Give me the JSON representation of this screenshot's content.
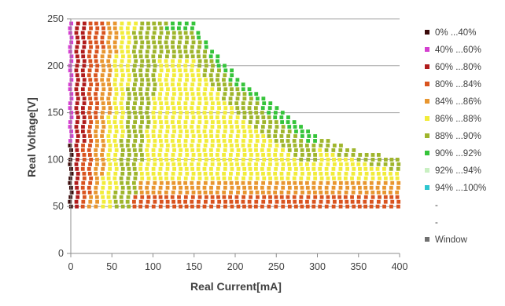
{
  "chart_data": {
    "type": "scatter",
    "xlabel": "Real Current[mA]",
    "ylabel": "Real Voltage[V]",
    "xlim": [
      0,
      400
    ],
    "ylim": [
      0,
      250
    ],
    "xticks": [
      "0",
      "50",
      "100",
      "150",
      "200",
      "250",
      "300",
      "350",
      "400"
    ],
    "yticks": [
      "0",
      "50",
      "100",
      "150",
      "200",
      "250"
    ],
    "grid": "horizontal",
    "legend_position": "right",
    "legend": [
      {
        "label": "0% ...40%",
        "color": "#3a0a0a"
      },
      {
        "label": "40% ...60%",
        "color": "#d43fd0"
      },
      {
        "label": "60% ...80%",
        "color": "#b01c1c"
      },
      {
        "label": "80% ...84%",
        "color": "#d9541f"
      },
      {
        "label": "84% ...86%",
        "color": "#e8962f"
      },
      {
        "label": "86% ...88%",
        "color": "#f2ec3a"
      },
      {
        "label": "88% ...90%",
        "color": "#9fb52c"
      },
      {
        "label": "90% ...92%",
        "color": "#35c43a"
      },
      {
        "label": "92% ...94%",
        "color": "#c9f0c2"
      },
      {
        "label": "94% ...100%",
        "color": "#2ec6cf"
      },
      {
        "label": "-",
        "color": ""
      },
      {
        "label": "-",
        "color": ""
      },
      {
        "label": "Window",
        "color": "#707070"
      }
    ],
    "series": [
      {
        "range": "0% ...40%",
        "color": "#3a0a0a",
        "x_min": 0,
        "x_max": 3,
        "y_min": 50,
        "y_max": 115,
        "top_v_at_zero": 115,
        "slope": 0
      },
      {
        "range": "40% ...60%",
        "color": "#d43fd0",
        "x_min": 0,
        "x_max": 13,
        "y_min": 50,
        "y_max": 245,
        "top_v_at_zero": 245,
        "slope": 0
      },
      {
        "range": "60% ...80%",
        "color": "#b01c1c",
        "x_min": 5,
        "x_max": 62,
        "y_min": 50,
        "y_max": 245,
        "top_v_at_zero": 245,
        "slope": 0
      },
      {
        "range": "80% ...84%",
        "color": "#d9541f",
        "x_min": 20,
        "x_max": 400,
        "y_min": 50,
        "y_max": 245,
        "top_v_at_zero": 245,
        "slope": 0
      },
      {
        "range": "84% ...86%",
        "color": "#e8962f",
        "x_min": 25,
        "x_max": 400,
        "y_min": 55,
        "y_max": 245,
        "top_v_at_zero": 245,
        "slope": 0
      },
      {
        "range": "86% ...88%",
        "color": "#f2ec3a",
        "x_min": 40,
        "x_max": 390,
        "y_min": 62,
        "y_max": 245,
        "top_v_at_zero": 245,
        "slope": 0
      },
      {
        "range": "88% ...90%",
        "color": "#9fb52c",
        "x_min": 55,
        "x_max": 400,
        "y_min": 72,
        "y_max": 248,
        "top_v_at_zero": 248,
        "slope": 0
      },
      {
        "range": "90% ...92%",
        "color": "#35c43a",
        "x_min": 75,
        "x_max": 320,
        "y_min": 100,
        "y_max": 248,
        "top_v_at_zero": 248,
        "slope": 0
      }
    ],
    "envelope": {
      "description": "max voltage for given current",
      "points": [
        [
          0,
          248
        ],
        [
          150,
          248
        ],
        [
          170,
          220
        ],
        [
          200,
          192
        ],
        [
          250,
          155
        ],
        [
          300,
          125
        ],
        [
          350,
          110
        ],
        [
          400,
          100
        ]
      ]
    },
    "min_voltage": 50
  }
}
